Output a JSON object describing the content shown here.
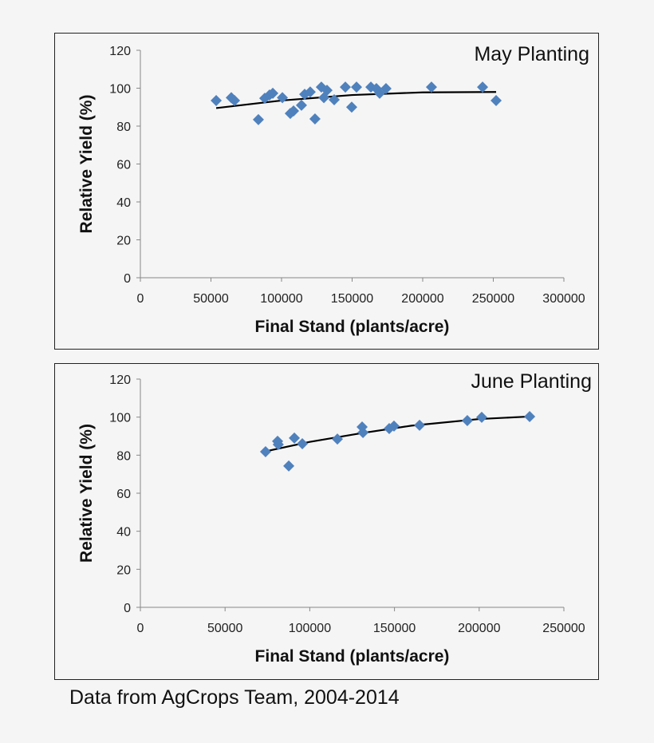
{
  "chart_data": [
    {
      "type": "scatter",
      "title": "May Planting",
      "xlabel": "Final Stand (plants/acre)",
      "ylabel": "Relative Yield (%)",
      "xlim": [
        0,
        300000
      ],
      "ylim": [
        0,
        120
      ],
      "xticks": [
        0,
        50000,
        100000,
        150000,
        200000,
        250000,
        300000
      ],
      "yticks": [
        0,
        20,
        40,
        60,
        80,
        100,
        120
      ],
      "grid": false,
      "marker_color": "#4f81bd",
      "points": [
        [
          53700,
          93.5
        ],
        [
          64400,
          95
        ],
        [
          66700,
          93.5
        ],
        [
          83600,
          83.4
        ],
        [
          88100,
          94.7
        ],
        [
          91500,
          96.4
        ],
        [
          93800,
          97.3
        ],
        [
          100600,
          95
        ],
        [
          106200,
          86.7
        ],
        [
          108500,
          88
        ],
        [
          114100,
          91
        ],
        [
          116400,
          96.8
        ],
        [
          120300,
          98
        ],
        [
          123700,
          83.8
        ],
        [
          128200,
          100.6
        ],
        [
          130000,
          95
        ],
        [
          132200,
          98.9
        ],
        [
          137300,
          93.9
        ],
        [
          145200,
          100.6
        ],
        [
          149700,
          90
        ],
        [
          153100,
          100.6
        ],
        [
          163300,
          100.6
        ],
        [
          167200,
          99.8
        ],
        [
          169500,
          97.3
        ],
        [
          174000,
          99.8
        ],
        [
          206200,
          100.6
        ],
        [
          242400,
          100.6
        ],
        [
          252000,
          93.5
        ]
      ],
      "trendline": {
        "type": "polynomial",
        "color": "#000000",
        "points": [
          [
            53700,
            89.5
          ],
          [
            100000,
            93.5
          ],
          [
            150000,
            96.4
          ],
          [
            200000,
            97.8
          ],
          [
            252000,
            98
          ]
        ]
      }
    },
    {
      "type": "scatter",
      "title": "June Planting",
      "xlabel": "Final Stand (plants/acre)",
      "ylabel": "Relative Yield (%)",
      "xlim": [
        0,
        250000
      ],
      "ylim": [
        0,
        120
      ],
      "xticks": [
        0,
        50000,
        100000,
        150000,
        200000,
        250000
      ],
      "yticks": [
        0,
        20,
        40,
        60,
        80,
        100,
        120
      ],
      "grid": false,
      "marker_color": "#4f81bd",
      "points": [
        [
          73900,
          81.8
        ],
        [
          81000,
          87.3
        ],
        [
          81400,
          85.6
        ],
        [
          87600,
          74.3
        ],
        [
          90900,
          89
        ],
        [
          95600,
          86
        ],
        [
          116300,
          88.5
        ],
        [
          130900,
          94.8
        ],
        [
          131400,
          91.9
        ],
        [
          146900,
          94
        ],
        [
          149700,
          95.3
        ],
        [
          164800,
          95.7
        ],
        [
          193000,
          98.2
        ],
        [
          201500,
          99.9
        ],
        [
          229800,
          100.3
        ]
      ],
      "trendline": {
        "type": "polynomial",
        "color": "#000000",
        "points": [
          [
            73900,
            82
          ],
          [
            100000,
            87
          ],
          [
            130000,
            91.5
          ],
          [
            160000,
            95.5
          ],
          [
            200000,
            99
          ],
          [
            229800,
            100.3
          ]
        ]
      }
    }
  ],
  "footer": "Data from AgCrops Team, 2004-2014"
}
